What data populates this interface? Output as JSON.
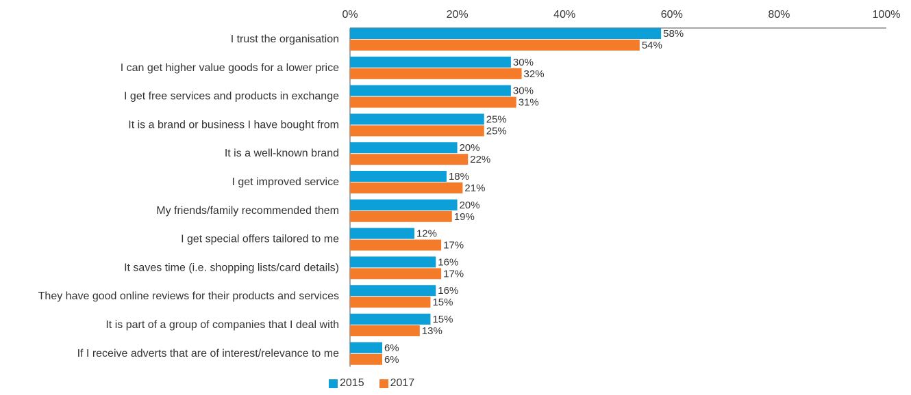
{
  "chart_data": {
    "type": "bar",
    "orientation": "horizontal",
    "title": "",
    "xlabel": "",
    "ylabel": "",
    "xlim": [
      0,
      100
    ],
    "x_ticks": [
      "0%",
      "20%",
      "40%",
      "60%",
      "80%",
      "100%"
    ],
    "x_tick_values": [
      0,
      20,
      40,
      60,
      80,
      100
    ],
    "x_axis_position": "top",
    "grid": false,
    "legend_position": "bottom",
    "value_suffix": "%",
    "categories": [
      "I trust the organisation",
      "I can get higher value goods for a lower price",
      "I get free services and products in exchange",
      "It is a brand or business I have bought from",
      "It is a well-known brand",
      "I get improved service",
      "My friends/family recommended them",
      "I get special offers tailored to me",
      "It saves time (i.e. shopping lists/card details)",
      "They have good online reviews for their products and services",
      "It is part of a group of companies that I deal with",
      "If I receive adverts that are of interest/relevance to me"
    ],
    "series": [
      {
        "name": "2015",
        "color": "#0C9FD8",
        "values": [
          58,
          30,
          30,
          25,
          20,
          18,
          20,
          12,
          16,
          16,
          15,
          6
        ]
      },
      {
        "name": "2017",
        "color": "#F47B2A",
        "values": [
          54,
          32,
          31,
          25,
          22,
          21,
          19,
          17,
          17,
          15,
          13,
          6
        ]
      }
    ]
  }
}
